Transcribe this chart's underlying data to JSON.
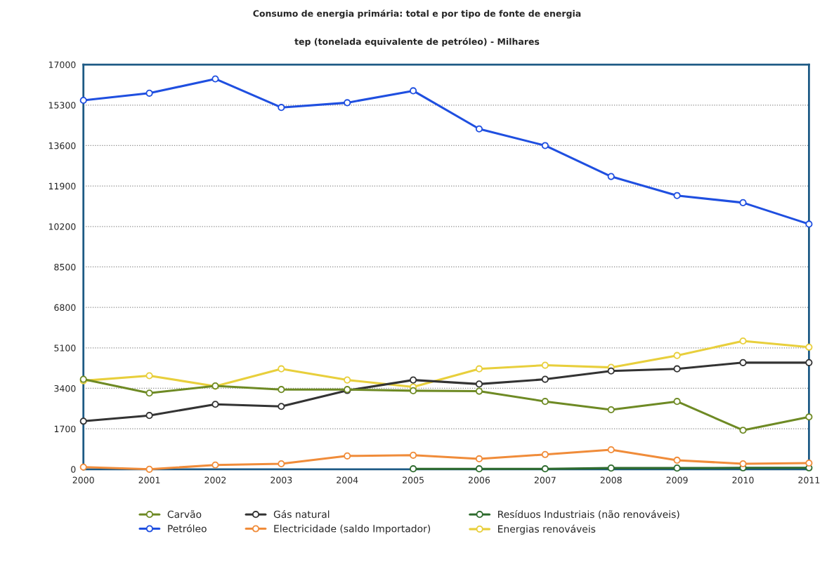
{
  "chart_data": {
    "type": "line",
    "title": "Consumo de energia primária: total e por tipo de fonte de energia",
    "subtitle": "tep (tonelada equivalente de petróleo) - Milhares",
    "categories": [
      "2000",
      "2001",
      "2002",
      "2003",
      "2004",
      "2005",
      "2006",
      "2007",
      "2008",
      "2009",
      "2010",
      "2011"
    ],
    "series": [
      {
        "name": "Carvão",
        "color": "#6e8a24",
        "values": [
          3780,
          3200,
          3500,
          3350,
          3350,
          3300,
          3280,
          2850,
          2500,
          2850,
          1640,
          2200
        ]
      },
      {
        "name": "Petróleo",
        "color": "#1f4fe0",
        "values": [
          15500,
          15800,
          16400,
          15200,
          15400,
          15900,
          14300,
          13600,
          12300,
          11500,
          11200,
          10300
        ]
      },
      {
        "name": "Gás natural",
        "color": "#333333",
        "values": [
          2020,
          2260,
          2730,
          2640,
          3310,
          3750,
          3580,
          3780,
          4130,
          4220,
          4480,
          4480
        ]
      },
      {
        "name": "Electricidade (saldo Importador)",
        "color": "#f08c3a",
        "values": [
          90,
          0,
          180,
          230,
          560,
          590,
          440,
          620,
          820,
          380,
          230,
          260
        ]
      },
      {
        "name": "Resíduos Industriais (não renováveis)",
        "color": "#2e6b2e",
        "values": [
          null,
          null,
          null,
          null,
          null,
          20,
          20,
          20,
          50,
          50,
          60,
          60
        ]
      },
      {
        "name": "Energias renováveis",
        "color": "#e8cf3c",
        "values": [
          3720,
          3930,
          3490,
          4220,
          3750,
          3460,
          4220,
          4370,
          4280,
          4780,
          5390,
          5130
        ]
      }
    ],
    "ylim": [
      0,
      17000
    ],
    "yticks": [
      0,
      1700,
      3400,
      5100,
      6800,
      8500,
      10200,
      11900,
      13600,
      15300,
      17000
    ],
    "grid": "y",
    "legend": "bottom",
    "marker": "circle",
    "line_style": "solid"
  }
}
